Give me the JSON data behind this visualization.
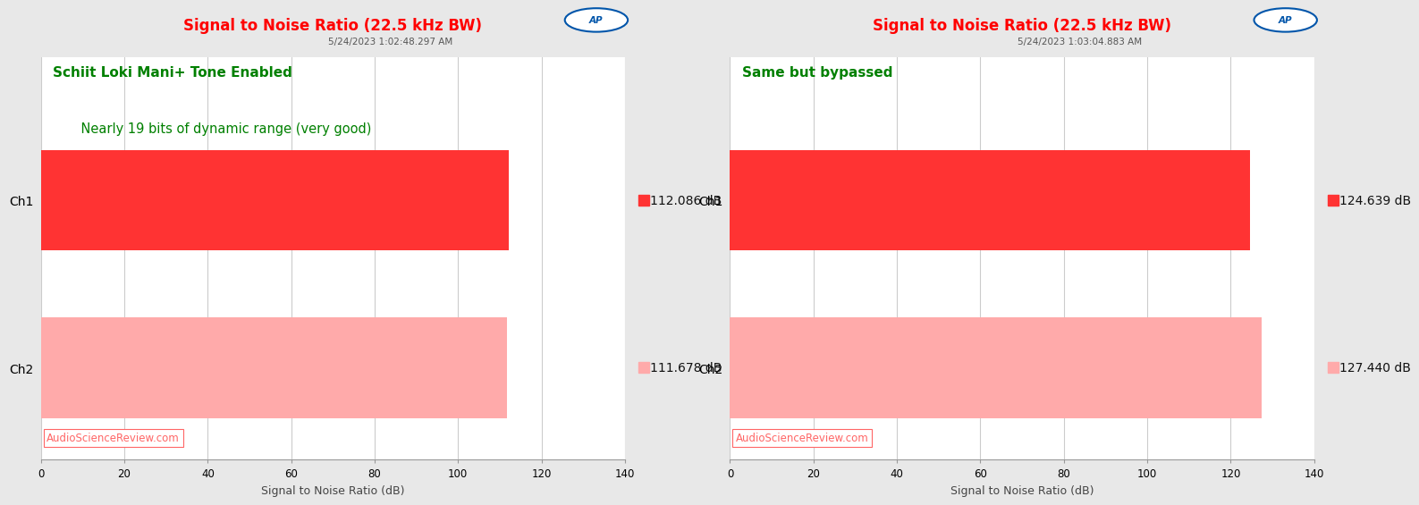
{
  "charts": [
    {
      "title": "Signal to Noise Ratio (22.5 kHz BW)",
      "timestamp": "5/24/2023 1:02:48.297 AM",
      "annotation_line1": "Schiit Loki Mani+ Tone Enabled",
      "annotation_line2": "    Nearly 19 bits of dynamic range (very good)",
      "channels": [
        "Ch1",
        "Ch2"
      ],
      "values": [
        112.086,
        111.678
      ],
      "value_labels": [
        "112.086 dB",
        "111.678 dB"
      ],
      "bar_colors": [
        "#FF3333",
        "#FFAAAA"
      ],
      "xlim": [
        0,
        140
      ],
      "xticks": [
        0,
        20,
        40,
        60,
        80,
        100,
        120,
        140
      ],
      "xlabel": "Signal to Noise Ratio (dB)",
      "watermark": "AudioScienceReview.com"
    },
    {
      "title": "Signal to Noise Ratio (22.5 kHz BW)",
      "timestamp": "5/24/2023 1:03:04.883 AM",
      "annotation_line1": "Same but bypassed",
      "annotation_line2": "",
      "channels": [
        "Ch1",
        "Ch2"
      ],
      "values": [
        124.639,
        127.44
      ],
      "value_labels": [
        "124.639 dB",
        "127.440 dB"
      ],
      "bar_colors": [
        "#FF3333",
        "#FFAAAA"
      ],
      "xlim": [
        0,
        140
      ],
      "xticks": [
        0,
        20,
        40,
        60,
        80,
        100,
        120,
        140
      ],
      "xlabel": "Signal to Noise Ratio (dB)",
      "watermark": "AudioScienceReview.com"
    }
  ],
  "title_color": "#FF0000",
  "timestamp_color": "#555555",
  "annotation_color": "#008000",
  "watermark_color": "#FF6666",
  "channel_label_color": "#000000",
  "value_label_color": "#111111",
  "background_color": "#E8E8E8",
  "plot_bg_color": "#FFFFFF",
  "grid_color": "#CCCCCC",
  "ap_logo_color": "#0055AA",
  "title_fontsize": 12,
  "timestamp_fontsize": 7.5,
  "annotation_fontsize": 11,
  "channel_fontsize": 10,
  "value_fontsize": 10,
  "xlabel_fontsize": 9,
  "watermark_fontsize": 8.5
}
